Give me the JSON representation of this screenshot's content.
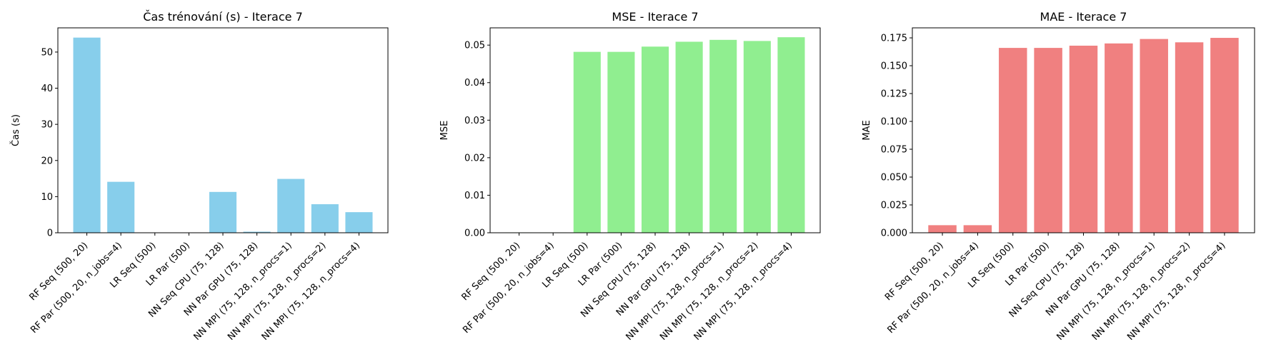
{
  "chart_data": [
    {
      "type": "bar",
      "title": "Čas trénování (s) - Iterace 7",
      "xlabel": "",
      "ylabel": "Čas (s)",
      "color": "#87ceeb",
      "ylim": [
        0,
        56.7
      ],
      "yticks": [
        0,
        10,
        20,
        30,
        40,
        50
      ],
      "ytick_labels": [
        "0",
        "10",
        "20",
        "30",
        "40",
        "50"
      ],
      "categories": [
        "RF Seq (500, 20)",
        "RF Par (500, 20, n_jobs=4)",
        "LR Seq (500)",
        "LR Par (500)",
        "NN Seq CPU (75, 128)",
        "NN Par GPU (75, 128)",
        "NN MPI (75, 128, n_procs=1)",
        "NN MPI (75, 128, n_procs=2)",
        "NN MPI (75, 128, n_procs=4)"
      ],
      "values": [
        54.0,
        14.1,
        0.05,
        0.05,
        11.3,
        0.3,
        14.9,
        7.9,
        5.7
      ]
    },
    {
      "type": "bar",
      "title": "MSE - Iterace 7",
      "xlabel": "",
      "ylabel": "MSE",
      "color": "#90ee90",
      "ylim": [
        0,
        0.0546
      ],
      "yticks": [
        0,
        0.01,
        0.02,
        0.03,
        0.04,
        0.05
      ],
      "ytick_labels": [
        "0.00",
        "0.01",
        "0.02",
        "0.03",
        "0.04",
        "0.05"
      ],
      "categories": [
        "RF Seq (500, 20)",
        "RF Par (500, 20, n_jobs=4)",
        "LR Seq (500)",
        "LR Par (500)",
        "NN Seq CPU (75, 128)",
        "NN Par GPU (75, 128)",
        "NN MPI (75, 128, n_procs=1)",
        "NN MPI (75, 128, n_procs=2)",
        "NN MPI (75, 128, n_procs=4)"
      ],
      "values": [
        0.0001,
        0.0001,
        0.0482,
        0.0482,
        0.0496,
        0.0509,
        0.0514,
        0.0511,
        0.0521
      ]
    },
    {
      "type": "bar",
      "title": "MAE - Iterace 7",
      "xlabel": "",
      "ylabel": "MAE",
      "color": "#f08080",
      "ylim": [
        0,
        0.184
      ],
      "yticks": [
        0,
        0.025,
        0.05,
        0.075,
        0.1,
        0.125,
        0.15,
        0.175
      ],
      "ytick_labels": [
        "0.000",
        "0.025",
        "0.050",
        "0.075",
        "0.100",
        "0.125",
        "0.150",
        "0.175"
      ],
      "categories": [
        "RF Seq (500, 20)",
        "RF Par (500, 20, n_jobs=4)",
        "LR Seq (500)",
        "LR Par (500)",
        "NN Seq CPU (75, 128)",
        "NN Par GPU (75, 128)",
        "NN MPI (75, 128, n_procs=1)",
        "NN MPI (75, 128, n_procs=2)",
        "NN MPI (75, 128, n_procs=4)"
      ],
      "values": [
        0.0068,
        0.0068,
        0.166,
        0.166,
        0.168,
        0.17,
        0.174,
        0.171,
        0.175
      ]
    }
  ]
}
